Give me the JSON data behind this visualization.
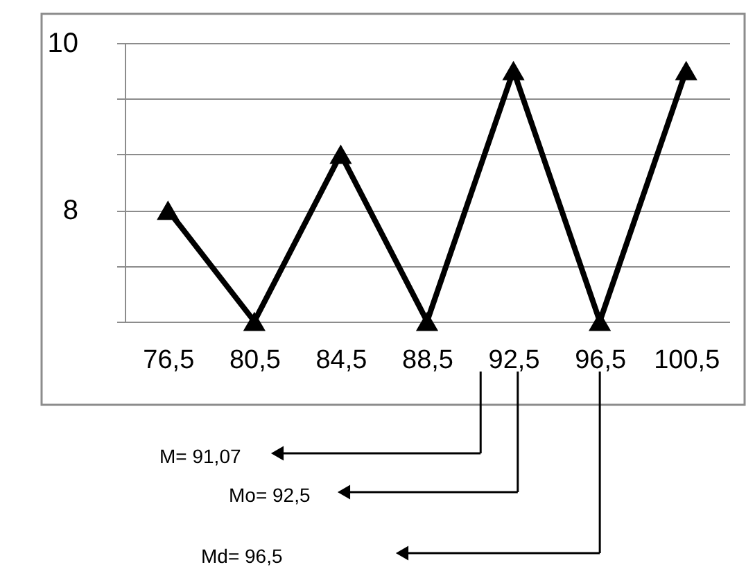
{
  "chart_data": {
    "type": "line",
    "categories": [
      "76,5",
      "80,5",
      "84,5",
      "88,5",
      "92,5",
      "96,5",
      "100,5"
    ],
    "series": [
      {
        "color": "#000000",
        "values": [
          8,
          6.67,
          8.67,
          6.67,
          9.67,
          6.67,
          9.67
        ]
      }
    ],
    "ylim": [
      6.667,
      10
    ],
    "yticks": [
      {
        "value": 6.667,
        "label": null
      },
      {
        "value": 7.333,
        "label": null
      },
      8,
      {
        "value": 8.667,
        "label": null
      },
      {
        "value": 9.333,
        "label": null
      },
      10
    ],
    "grid": "y",
    "marker": "triangle",
    "line_style": "solid",
    "legend": false,
    "annotations": [
      "M= 91,07",
      "Mo= 92,5",
      "Md= 96,5"
    ]
  }
}
